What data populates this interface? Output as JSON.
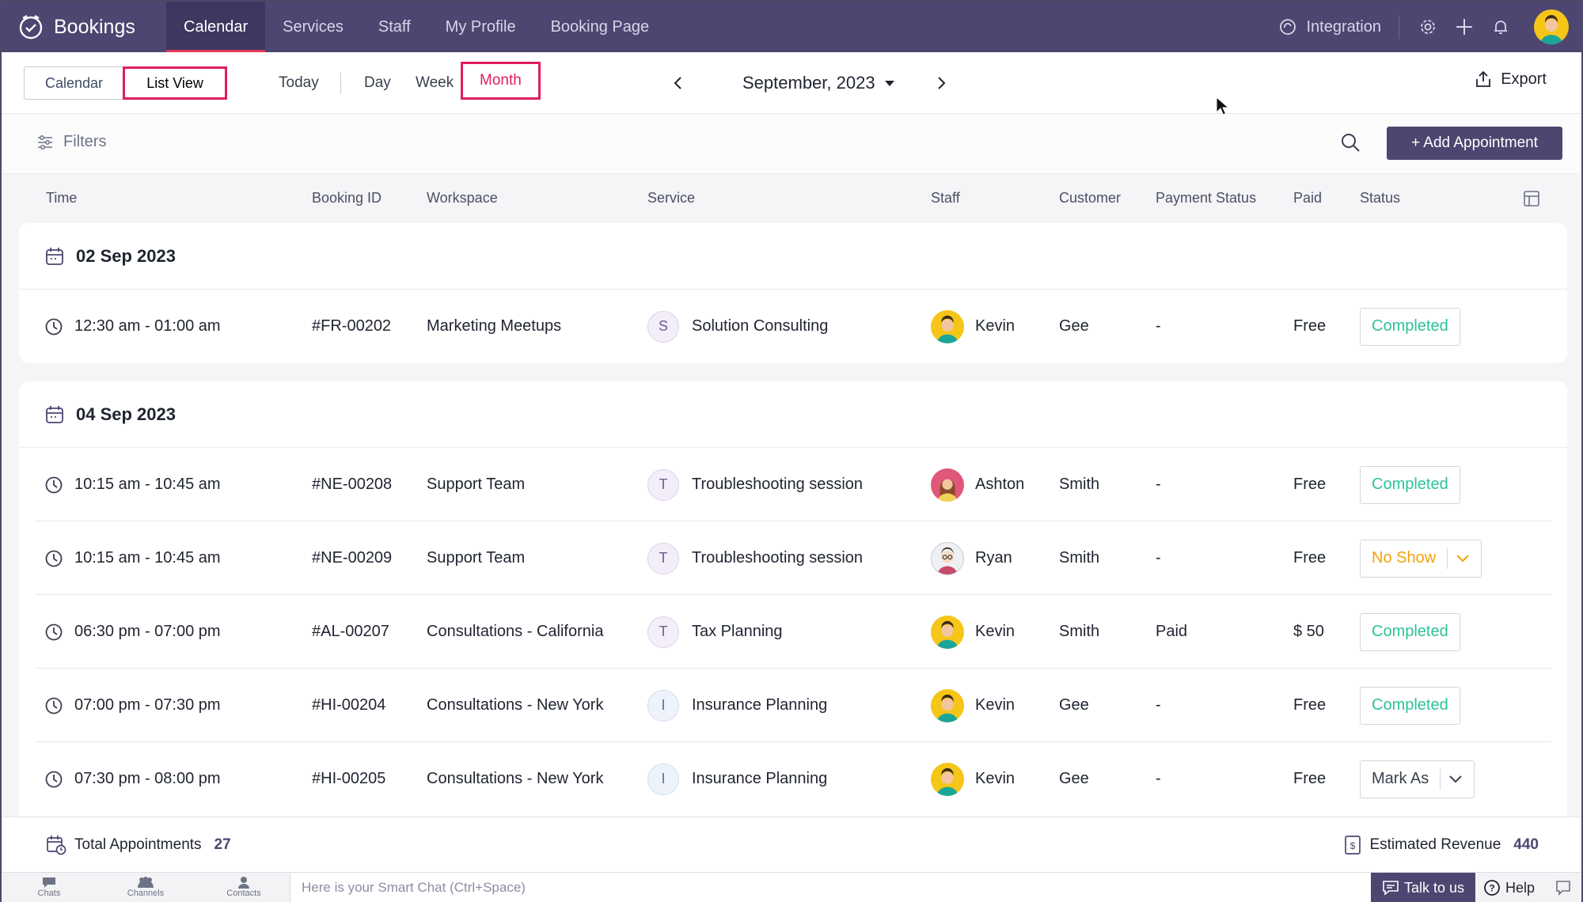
{
  "app": {
    "name": "Bookings"
  },
  "nav": {
    "tabs": [
      {
        "label": "Calendar",
        "active": true
      },
      {
        "label": "Services"
      },
      {
        "label": "Staff"
      },
      {
        "label": "My Profile"
      },
      {
        "label": "Booking Page"
      }
    ],
    "integration_label": "Integration"
  },
  "toolbar": {
    "view_toggle": [
      "Calendar",
      "List View"
    ],
    "today_label": "Today",
    "periods": [
      "Day",
      "Week",
      "Month"
    ],
    "selected_period": "Month",
    "current_period_label": "September, 2023",
    "export_label": "Export"
  },
  "filterbar": {
    "filters_label": "Filters",
    "add_label": "+ Add Appointment"
  },
  "table": {
    "columns": [
      "Time",
      "Booking ID",
      "Workspace",
      "Service",
      "Staff",
      "Customer",
      "Payment Status",
      "Paid",
      "Status"
    ],
    "groups": [
      {
        "date": "02 Sep 2023",
        "rows": [
          {
            "time": "12:30 am - 01:00 am",
            "booking_id": "#FR-00202",
            "workspace": "Marketing Meetups",
            "service_initial": "S",
            "service": "Solution Consulting",
            "staff": "Kevin",
            "customer": "Gee",
            "payment_status": "-",
            "paid": "Free",
            "status": "Completed"
          }
        ]
      },
      {
        "date": "04 Sep 2023",
        "rows": [
          {
            "time": "10:15 am - 10:45 am",
            "booking_id": "#NE-00208",
            "workspace": "Support Team",
            "service_initial": "T",
            "service": "Troubleshooting session",
            "staff": "Ashton",
            "customer": "Smith",
            "payment_status": "-",
            "paid": "Free",
            "status": "Completed"
          },
          {
            "time": "10:15 am - 10:45 am",
            "booking_id": "#NE-00209",
            "workspace": "Support Team",
            "service_initial": "T",
            "service": "Troubleshooting session",
            "staff": "Ryan",
            "customer": "Smith",
            "payment_status": "-",
            "paid": "Free",
            "status": "No Show"
          },
          {
            "time": "06:30 pm - 07:00 pm",
            "booking_id": "#AL-00207",
            "workspace": "Consultations - California",
            "service_initial": "T",
            "service": "Tax Planning",
            "staff": "Kevin",
            "customer": "Smith",
            "payment_status": "Paid",
            "paid": "$ 50",
            "status": "Completed"
          },
          {
            "time": "07:00 pm - 07:30 pm",
            "booking_id": "#HI-00204",
            "workspace": "Consultations - New York",
            "service_initial": "I",
            "service": "Insurance Planning",
            "staff": "Kevin",
            "customer": "Gee",
            "payment_status": "-",
            "paid": "Free",
            "status": "Completed"
          },
          {
            "time": "07:30 pm - 08:00 pm",
            "booking_id": "#HI-00205",
            "workspace": "Consultations - New York",
            "service_initial": "I",
            "service": "Insurance Planning",
            "staff": "Kevin",
            "customer": "Gee",
            "payment_status": "-",
            "paid": "Free",
            "status": "Mark As"
          }
        ]
      }
    ]
  },
  "summary": {
    "total_label": "Total Appointments",
    "total_value": "27",
    "revenue_label": "Estimated Revenue",
    "revenue_value": "440"
  },
  "chatbar": {
    "tabs": [
      "Chats",
      "Channels",
      "Contacts"
    ],
    "placeholder": "Here is your Smart Chat (Ctrl+Space)",
    "talk_label": "Talk to us",
    "help_label": "Help"
  },
  "colors": {
    "nav_bg": "#4d4670",
    "accent_red": "#e01e5a",
    "completed_green": "#2cc39a",
    "noshow_orange": "#f0a30a",
    "primary_button": "#4d4670"
  },
  "icons": [
    "bookings-logo-icon",
    "integration-icon",
    "gear-icon",
    "plus-icon",
    "bell-icon",
    "chevron-left-icon",
    "chevron-right-icon",
    "caret-down-icon",
    "export-icon",
    "filter-icon",
    "search-icon",
    "table-settings-icon",
    "calendar-icon",
    "clock-icon",
    "chevron-down-icon",
    "chat-icon",
    "help-icon"
  ]
}
